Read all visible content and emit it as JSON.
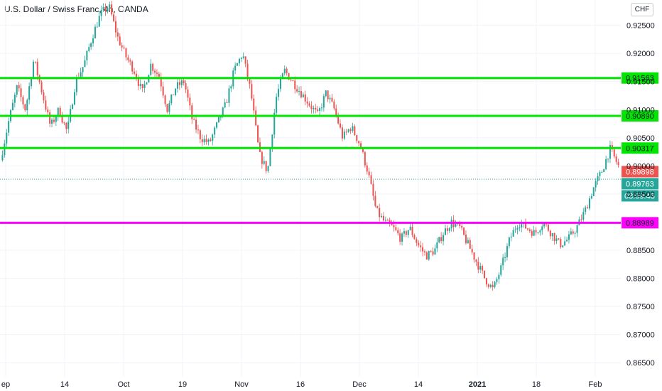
{
  "header": {
    "title": "U.S. Dollar / Swiss Franc, 4h, OANDA",
    "currency_label": "CHF"
  },
  "chart_data": {
    "type": "candlestick",
    "title": "U.S. Dollar / Swiss Franc, 4h, OANDA",
    "ylim": [
      0.8625,
      0.9295
    ],
    "y_ticks": [
      "0.92500",
      "0.92000",
      "0.91500",
      "0.91000",
      "0.90500",
      "0.90000",
      "0.89500",
      "0.88500",
      "0.88000",
      "0.87500",
      "0.87000",
      "0.86500"
    ],
    "x_ticks": [
      "ep",
      "14",
      "Oct",
      "19",
      "Nov",
      "16",
      "Dec",
      "14",
      "2021",
      "18",
      "Feb"
    ],
    "grid": true,
    "price_path": [
      [
        "ep",
        0.901
      ],
      [
        "ep",
        0.908
      ],
      [
        "ep",
        0.914
      ],
      [
        "ep",
        0.91
      ],
      [
        "ep",
        0.919
      ],
      [
        "ep",
        0.913
      ],
      [
        "14",
        0.907
      ],
      [
        "14",
        0.91
      ],
      [
        "14",
        0.906
      ],
      [
        "14",
        0.915
      ],
      [
        "14",
        0.918
      ],
      [
        "14",
        0.923
      ],
      [
        "14",
        0.927
      ],
      [
        "14",
        0.9285
      ],
      [
        "14",
        0.923
      ],
      [
        "Oct",
        0.9195
      ],
      [
        "Oct",
        0.917
      ],
      [
        "Oct",
        0.913
      ],
      [
        "Oct",
        0.918
      ],
      [
        "Oct",
        0.916
      ],
      [
        "Oct",
        0.91
      ],
      [
        "Oct",
        0.914
      ],
      [
        "19",
        0.915
      ],
      [
        "19",
        0.908
      ],
      [
        "19",
        0.905
      ],
      [
        "19",
        0.904
      ],
      [
        "19",
        0.9075
      ],
      [
        "19",
        0.911
      ],
      [
        "Nov",
        0.917
      ],
      [
        "Nov",
        0.92
      ],
      [
        "Nov",
        0.913
      ],
      [
        "Nov",
        0.902
      ],
      [
        "Nov",
        0.899
      ],
      [
        "Nov",
        0.912
      ],
      [
        "Nov",
        0.917
      ],
      [
        "Nov",
        0.915
      ],
      [
        "16",
        0.913
      ],
      [
        "16",
        0.911
      ],
      [
        "16",
        0.909
      ],
      [
        "16",
        0.913
      ],
      [
        "16",
        0.91
      ],
      [
        "16",
        0.905
      ],
      [
        "16",
        0.907
      ],
      [
        "Dec",
        0.904
      ],
      [
        "Dec",
        0.899
      ],
      [
        "Dec",
        0.892
      ],
      [
        "Dec",
        0.89
      ],
      [
        "Dec",
        0.889
      ],
      [
        "14",
        0.887
      ],
      [
        "14",
        0.889
      ],
      [
        "14",
        0.886
      ],
      [
        "14",
        0.884
      ],
      [
        "14",
        0.885
      ],
      [
        "14",
        0.888
      ],
      [
        "14",
        0.89
      ],
      [
        "14",
        0.889
      ],
      [
        "2021",
        0.886
      ],
      [
        "2021",
        0.883
      ],
      [
        "2021",
        0.88
      ],
      [
        "2021",
        0.878
      ],
      [
        "2021",
        0.882
      ],
      [
        "2021",
        0.887
      ],
      [
        "2021",
        0.89
      ],
      [
        "18",
        0.889
      ],
      [
        "18",
        0.888
      ],
      [
        "18",
        0.89
      ],
      [
        "18",
        0.888
      ],
      [
        "18",
        0.886
      ],
      [
        "18",
        0.887
      ],
      [
        "18",
        0.889
      ],
      [
        "Feb",
        0.892
      ],
      [
        "Feb",
        0.896
      ],
      [
        "Feb",
        0.899
      ],
      [
        "Feb",
        0.903
      ],
      [
        "Feb",
        0.9
      ]
    ],
    "horizontal_levels": [
      {
        "value": 0.91563,
        "label": "0.91563",
        "color": "#00e600"
      },
      {
        "value": 0.9089,
        "label": "0.90890",
        "color": "#00e600"
      },
      {
        "value": 0.90317,
        "label": "0.90317",
        "color": "#00e600"
      },
      {
        "value": 0.88989,
        "label": "0.88989",
        "color": "#ff00ff"
      }
    ],
    "last_price": {
      "value": 0.89898,
      "label": "0.89898",
      "color": "#ef5350"
    },
    "current_bid": {
      "value": 0.89763,
      "label": "0.89763",
      "color": "#26a69a"
    },
    "countdown": {
      "label": "03:09:43",
      "color": "#26a69a"
    },
    "colors": {
      "up": "#26a69a",
      "down": "#ef5350",
      "grid": "#f0f3fa",
      "axis_text": "#131722"
    }
  }
}
